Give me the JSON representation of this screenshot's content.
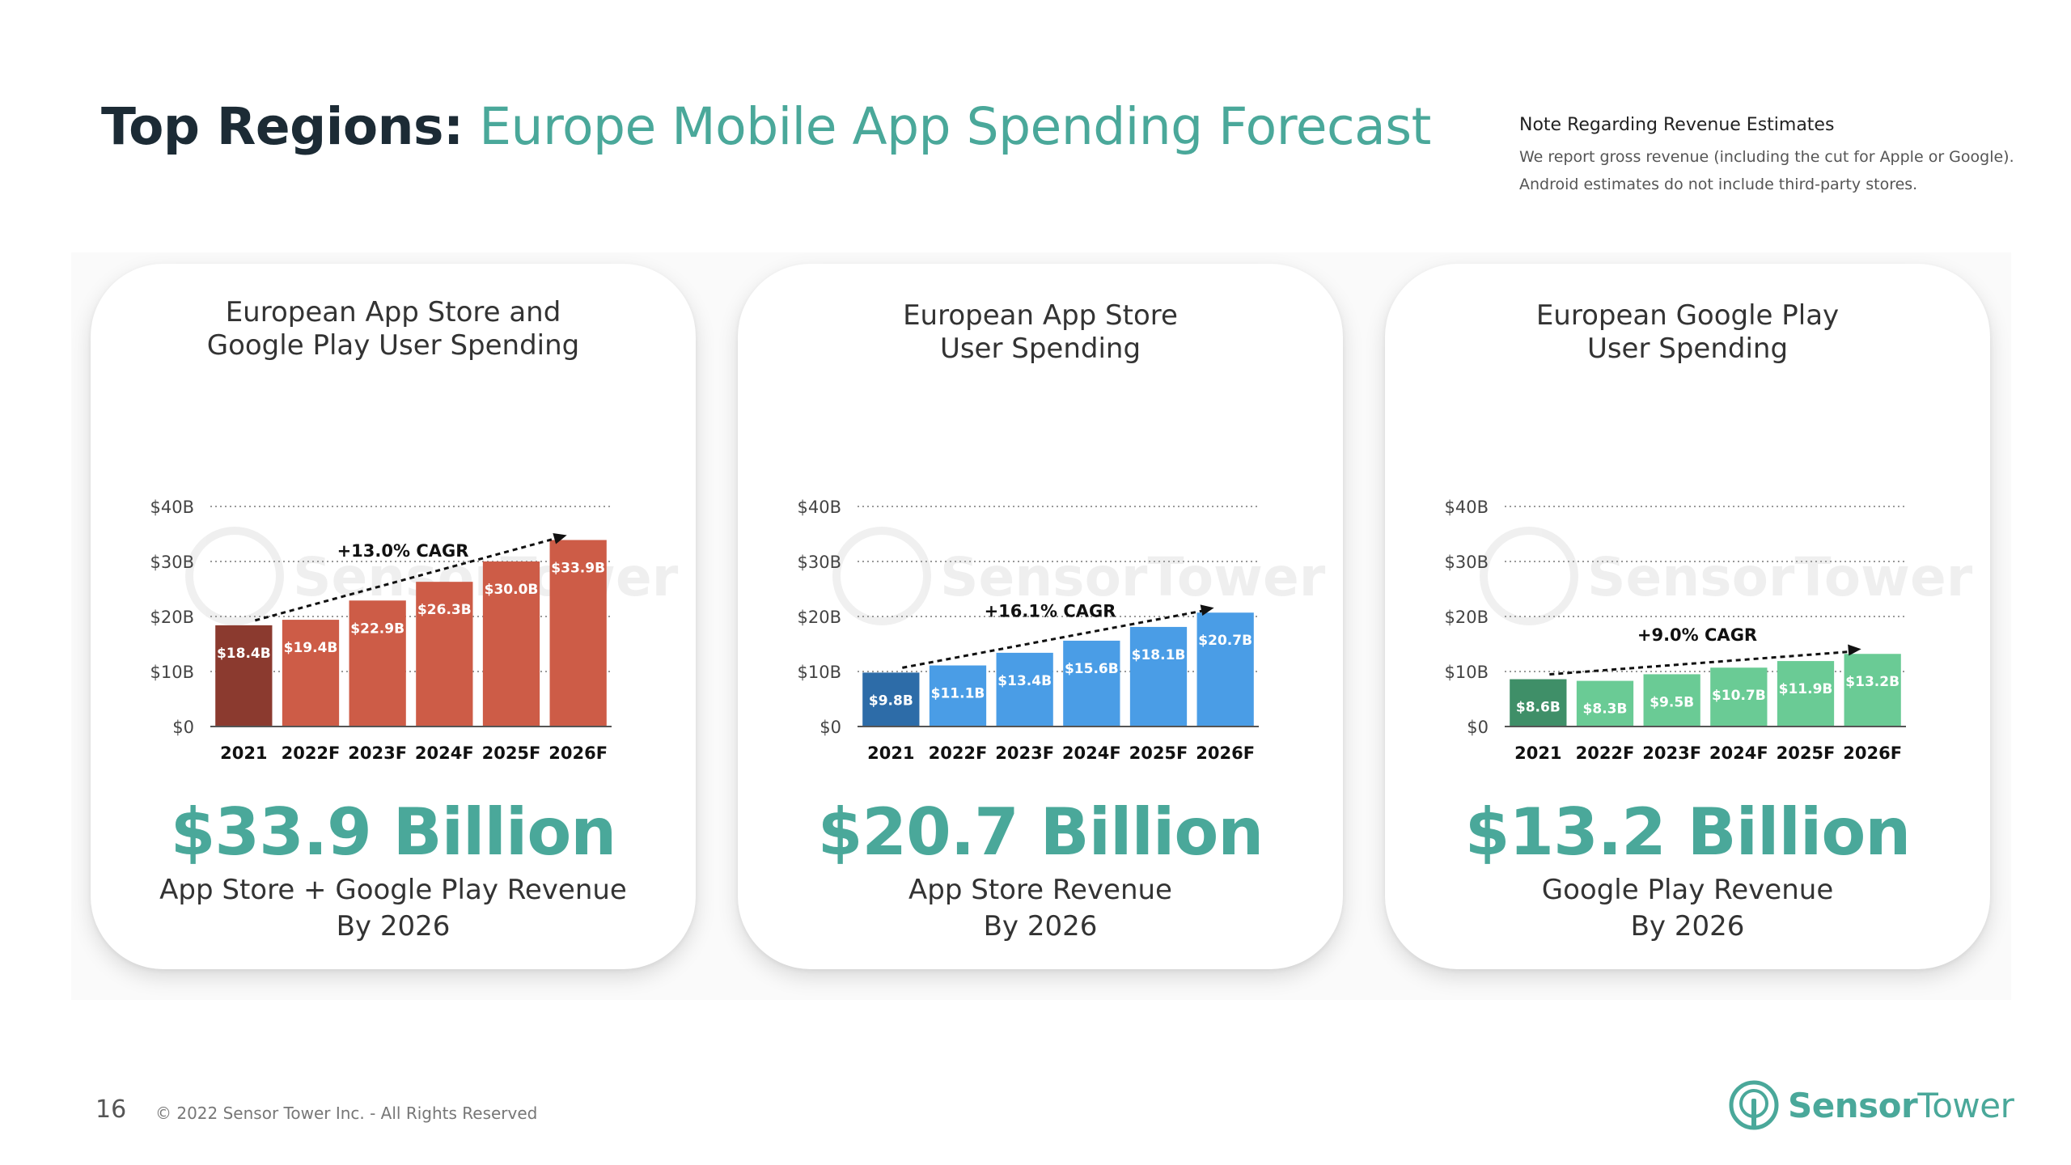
{
  "header": {
    "title_bold": "Top Regions:",
    "title_light": "Europe Mobile App Spending Forecast"
  },
  "note": {
    "heading": "Note Regarding Revenue Estimates",
    "line1": "We report gross revenue (including the cut for Apple or Google).",
    "line2": "Android estimates do not include third-party stores."
  },
  "watermark": "SensorTower",
  "colors": {
    "accent": "#4aa89a",
    "combined_first": "#8b3a2f",
    "combined_rest": "#cd5c47",
    "appstore_first": "#2d6ca8",
    "appstore_rest": "#4a9de6",
    "googleplay_first": "#3f8f68",
    "googleplay_rest": "#6acb95"
  },
  "cards": [
    {
      "title_line1": "European App Store and",
      "title_line2": "Google Play User Spending",
      "big_value": "$33.9 Billion",
      "sub_line1": "App Store + Google Play Revenue",
      "sub_line2": "By 2026"
    },
    {
      "title_line1": "European App Store",
      "title_line2": "User Spending",
      "big_value": "$20.7 Billion",
      "sub_line1": "App Store Revenue",
      "sub_line2": "By 2026"
    },
    {
      "title_line1": "European Google Play",
      "title_line2": "User Spending",
      "big_value": "$13.2 Billion",
      "sub_line1": "Google Play Revenue",
      "sub_line2": "By 2026"
    }
  ],
  "chart_data": [
    {
      "type": "bar",
      "title": "European App Store and Google Play User Spending",
      "categories": [
        "2021",
        "2022F",
        "2023F",
        "2024F",
        "2025F",
        "2026F"
      ],
      "values": [
        18.4,
        19.4,
        22.9,
        26.3,
        30.0,
        33.9
      ],
      "value_labels": [
        "$18.4B",
        "$19.4B",
        "$22.9B",
        "$26.3B",
        "$30.0B",
        "$33.9B"
      ],
      "ylim": [
        0,
        40
      ],
      "yticks": [
        0,
        10,
        20,
        30,
        40
      ],
      "ytick_labels": [
        "$0",
        "$10B",
        "$20B",
        "$30B",
        "$40B"
      ],
      "annotation": "+13.0% CAGR",
      "colors": [
        "#8b3a2f",
        "#cd5c47"
      ],
      "grid": true
    },
    {
      "type": "bar",
      "title": "European App Store User Spending",
      "categories": [
        "2021",
        "2022F",
        "2023F",
        "2024F",
        "2025F",
        "2026F"
      ],
      "values": [
        9.8,
        11.1,
        13.4,
        15.6,
        18.1,
        20.7
      ],
      "value_labels": [
        "$9.8B",
        "$11.1B",
        "$13.4B",
        "$15.6B",
        "$18.1B",
        "$20.7B"
      ],
      "ylim": [
        0,
        40
      ],
      "yticks": [
        0,
        10,
        20,
        30,
        40
      ],
      "ytick_labels": [
        "$0",
        "$10B",
        "$20B",
        "$30B",
        "$40B"
      ],
      "annotation": "+16.1% CAGR",
      "colors": [
        "#2d6ca8",
        "#4a9de6"
      ],
      "grid": true
    },
    {
      "type": "bar",
      "title": "European Google Play User Spending",
      "categories": [
        "2021",
        "2022F",
        "2023F",
        "2024F",
        "2025F",
        "2026F"
      ],
      "values": [
        8.6,
        8.3,
        9.5,
        10.7,
        11.9,
        13.2
      ],
      "value_labels": [
        "$8.6B",
        "$8.3B",
        "$9.5B",
        "$10.7B",
        "$11.9B",
        "$13.2B"
      ],
      "ylim": [
        0,
        40
      ],
      "yticks": [
        0,
        10,
        20,
        30,
        40
      ],
      "ytick_labels": [
        "$0",
        "$10B",
        "$20B",
        "$30B",
        "$40B"
      ],
      "annotation": "+9.0% CAGR",
      "colors": [
        "#3f8f68",
        "#6acb95"
      ],
      "grid": true
    }
  ],
  "footer": {
    "page_number": "16",
    "copyright": "© 2022 Sensor Tower Inc. - All Rights Reserved",
    "brand_bold": "Sensor",
    "brand_regular": "Tower"
  }
}
